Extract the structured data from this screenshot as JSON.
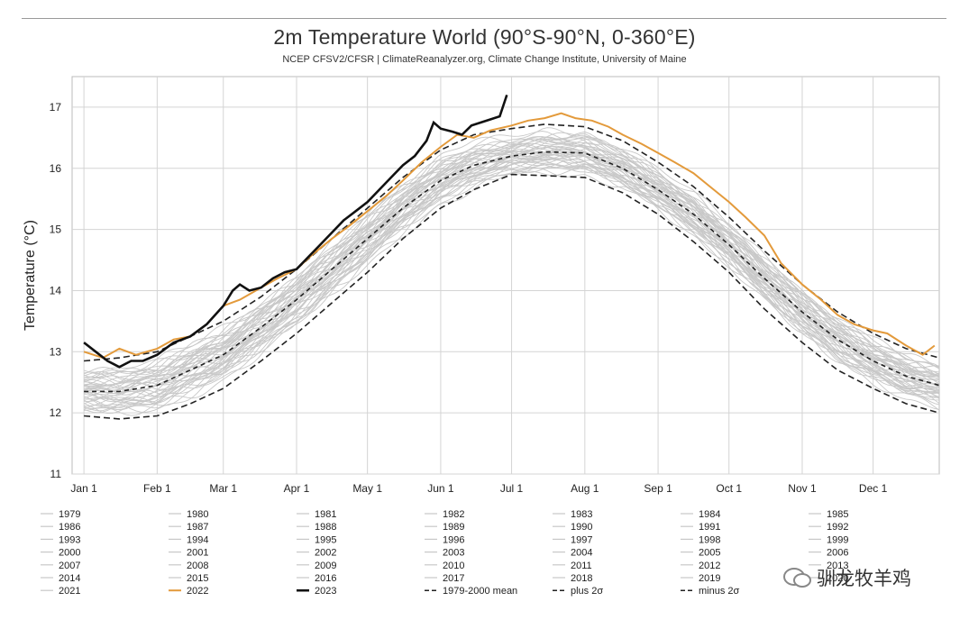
{
  "title": "2m Temperature World (90°S-90°N, 0-360°E)",
  "subtitle": "NCEP CFSV2/CFSR | ClimateReanalyzer.org, Climate Change Institute, University of Maine",
  "watermark": "驯龙牧羊鸡",
  "chart_data": {
    "type": "line",
    "title": "2m Temperature World (90°S-90°N, 0-360°E)",
    "ylabel": "Temperature (°C)",
    "xlabel": "",
    "ylim": [
      11,
      17.5
    ],
    "xlim_day": [
      -5,
      362
    ],
    "yticks": [
      11,
      12,
      13,
      14,
      15,
      16,
      17
    ],
    "xticks": [
      {
        "label": "Jan 1",
        "day": 0
      },
      {
        "label": "Feb 1",
        "day": 31
      },
      {
        "label": "Mar 1",
        "day": 59
      },
      {
        "label": "Apr 1",
        "day": 90
      },
      {
        "label": "May 1",
        "day": 120
      },
      {
        "label": "Jun 1",
        "day": 151
      },
      {
        "label": "Jul 1",
        "day": 181
      },
      {
        "label": "Aug 1",
        "day": 212
      },
      {
        "label": "Sep 1",
        "day": 243
      },
      {
        "label": "Oct 1",
        "day": 273
      },
      {
        "label": "Nov 1",
        "day": 304
      },
      {
        "label": "Dec 1",
        "day": 334
      }
    ],
    "grid": true,
    "legend_position": "bottom",
    "gray_years": [
      "1979",
      "1980",
      "1981",
      "1982",
      "1983",
      "1984",
      "1985",
      "1986",
      "1987",
      "1988",
      "1989",
      "1990",
      "1991",
      "1992",
      "1993",
      "1994",
      "1995",
      "1996",
      "1997",
      "1998",
      "1999",
      "2000",
      "2001",
      "2002",
      "2003",
      "2004",
      "2005",
      "2006",
      "2007",
      "2008",
      "2009",
      "2010",
      "2011",
      "2012",
      "2013",
      "2014",
      "2015",
      "2016",
      "2017",
      "2018",
      "2019",
      "2020",
      "2021"
    ],
    "gray_color": "#c8c8c8",
    "mean_curve": {
      "name": "1979-2000 mean",
      "color": "#222222",
      "points": [
        [
          0,
          12.35
        ],
        [
          15,
          12.35
        ],
        [
          31,
          12.45
        ],
        [
          45,
          12.7
        ],
        [
          59,
          12.95
        ],
        [
          75,
          13.4
        ],
        [
          90,
          13.85
        ],
        [
          105,
          14.35
        ],
        [
          120,
          14.85
        ],
        [
          135,
          15.35
        ],
        [
          151,
          15.8
        ],
        [
          165,
          16.05
        ],
        [
          181,
          16.2
        ],
        [
          195,
          16.27
        ],
        [
          212,
          16.25
        ],
        [
          228,
          16.0
        ],
        [
          243,
          15.65
        ],
        [
          258,
          15.25
        ],
        [
          273,
          14.75
        ],
        [
          288,
          14.2
        ],
        [
          304,
          13.65
        ],
        [
          319,
          13.2
        ],
        [
          334,
          12.85
        ],
        [
          348,
          12.6
        ],
        [
          362,
          12.45
        ]
      ]
    },
    "plus_2sigma": {
      "name": "plus 2σ",
      "color": "#222222",
      "points": [
        [
          0,
          12.85
        ],
        [
          15,
          12.9
        ],
        [
          31,
          13.0
        ],
        [
          45,
          13.25
        ],
        [
          59,
          13.5
        ],
        [
          75,
          13.9
        ],
        [
          90,
          14.35
        ],
        [
          105,
          14.85
        ],
        [
          120,
          15.35
        ],
        [
          135,
          15.85
        ],
        [
          151,
          16.3
        ],
        [
          165,
          16.55
        ],
        [
          181,
          16.65
        ],
        [
          195,
          16.72
        ],
        [
          212,
          16.68
        ],
        [
          228,
          16.45
        ],
        [
          243,
          16.1
        ],
        [
          258,
          15.7
        ],
        [
          273,
          15.2
        ],
        [
          288,
          14.65
        ],
        [
          304,
          14.1
        ],
        [
          319,
          13.65
        ],
        [
          334,
          13.3
        ],
        [
          348,
          13.05
        ],
        [
          362,
          12.9
        ]
      ]
    },
    "minus_2sigma": {
      "name": "minus 2σ",
      "color": "#222222",
      "points": [
        [
          0,
          11.95
        ],
        [
          15,
          11.9
        ],
        [
          31,
          11.95
        ],
        [
          45,
          12.15
        ],
        [
          59,
          12.4
        ],
        [
          75,
          12.85
        ],
        [
          90,
          13.3
        ],
        [
          105,
          13.8
        ],
        [
          120,
          14.3
        ],
        [
          135,
          14.85
        ],
        [
          151,
          15.35
        ],
        [
          165,
          15.65
        ],
        [
          181,
          15.9
        ],
        [
          195,
          15.88
        ],
        [
          212,
          15.85
        ],
        [
          228,
          15.6
        ],
        [
          243,
          15.25
        ],
        [
          258,
          14.8
        ],
        [
          273,
          14.3
        ],
        [
          288,
          13.7
        ],
        [
          304,
          13.15
        ],
        [
          319,
          12.7
        ],
        [
          334,
          12.4
        ],
        [
          348,
          12.15
        ],
        [
          362,
          12.0
        ]
      ]
    },
    "series_2022": {
      "name": "2022",
      "color": "#e39a3b",
      "points": [
        [
          0,
          13.0
        ],
        [
          8,
          12.9
        ],
        [
          15,
          13.05
        ],
        [
          22,
          12.95
        ],
        [
          31,
          13.05
        ],
        [
          38,
          13.2
        ],
        [
          45,
          13.25
        ],
        [
          52,
          13.45
        ],
        [
          59,
          13.75
        ],
        [
          66,
          13.85
        ],
        [
          75,
          14.05
        ],
        [
          82,
          14.2
        ],
        [
          90,
          14.35
        ],
        [
          97,
          14.6
        ],
        [
          105,
          14.85
        ],
        [
          112,
          15.05
        ],
        [
          120,
          15.3
        ],
        [
          128,
          15.55
        ],
        [
          135,
          15.8
        ],
        [
          143,
          16.1
        ],
        [
          151,
          16.35
        ],
        [
          158,
          16.55
        ],
        [
          165,
          16.5
        ],
        [
          172,
          16.62
        ],
        [
          181,
          16.7
        ],
        [
          188,
          16.78
        ],
        [
          195,
          16.82
        ],
        [
          202,
          16.9
        ],
        [
          208,
          16.82
        ],
        [
          215,
          16.78
        ],
        [
          222,
          16.68
        ],
        [
          228,
          16.55
        ],
        [
          236,
          16.4
        ],
        [
          243,
          16.25
        ],
        [
          250,
          16.1
        ],
        [
          258,
          15.92
        ],
        [
          265,
          15.7
        ],
        [
          273,
          15.45
        ],
        [
          280,
          15.2
        ],
        [
          288,
          14.9
        ],
        [
          295,
          14.45
        ],
        [
          304,
          14.1
        ],
        [
          312,
          13.85
        ],
        [
          319,
          13.6
        ],
        [
          326,
          13.45
        ],
        [
          334,
          13.35
        ],
        [
          340,
          13.3
        ],
        [
          348,
          13.1
        ],
        [
          355,
          12.95
        ],
        [
          360,
          13.1
        ]
      ]
    },
    "series_2023": {
      "name": "2023",
      "color": "#111111",
      "points": [
        [
          0,
          13.15
        ],
        [
          5,
          13.0
        ],
        [
          10,
          12.85
        ],
        [
          15,
          12.75
        ],
        [
          20,
          12.85
        ],
        [
          25,
          12.85
        ],
        [
          31,
          12.95
        ],
        [
          38,
          13.15
        ],
        [
          45,
          13.25
        ],
        [
          52,
          13.45
        ],
        [
          59,
          13.75
        ],
        [
          63,
          14.0
        ],
        [
          66,
          14.1
        ],
        [
          70,
          14.0
        ],
        [
          75,
          14.05
        ],
        [
          80,
          14.2
        ],
        [
          85,
          14.3
        ],
        [
          90,
          14.35
        ],
        [
          95,
          14.55
        ],
        [
          100,
          14.75
        ],
        [
          105,
          14.95
        ],
        [
          110,
          15.15
        ],
        [
          115,
          15.3
        ],
        [
          120,
          15.45
        ],
        [
          125,
          15.65
        ],
        [
          130,
          15.85
        ],
        [
          135,
          16.05
        ],
        [
          140,
          16.2
        ],
        [
          145,
          16.45
        ],
        [
          148,
          16.75
        ],
        [
          151,
          16.65
        ],
        [
          156,
          16.6
        ],
        [
          160,
          16.55
        ],
        [
          164,
          16.7
        ],
        [
          168,
          16.75
        ],
        [
          172,
          16.8
        ],
        [
          176,
          16.85
        ],
        [
          179,
          17.2
        ]
      ]
    },
    "legend": [
      [
        "1979",
        "1980",
        "1981",
        "1982",
        "1983",
        "1984",
        "1985"
      ],
      [
        "1986",
        "1987",
        "1988",
        "1989",
        "1990",
        "1991",
        "1992"
      ],
      [
        "1993",
        "1994",
        "1995",
        "1996",
        "1997",
        "1998",
        "1999"
      ],
      [
        "2000",
        "2001",
        "2002",
        "2003",
        "2004",
        "2005",
        "2006"
      ],
      [
        "2007",
        "2008",
        "2009",
        "2010",
        "2011",
        "2012",
        "2013"
      ],
      [
        "2014",
        "2015",
        "2016",
        "2017",
        "2018",
        "2019",
        "2020"
      ],
      [
        "2021",
        "2022",
        "2023",
        "1979-2000 mean",
        "plus 2σ",
        "minus 2σ",
        ""
      ]
    ]
  }
}
